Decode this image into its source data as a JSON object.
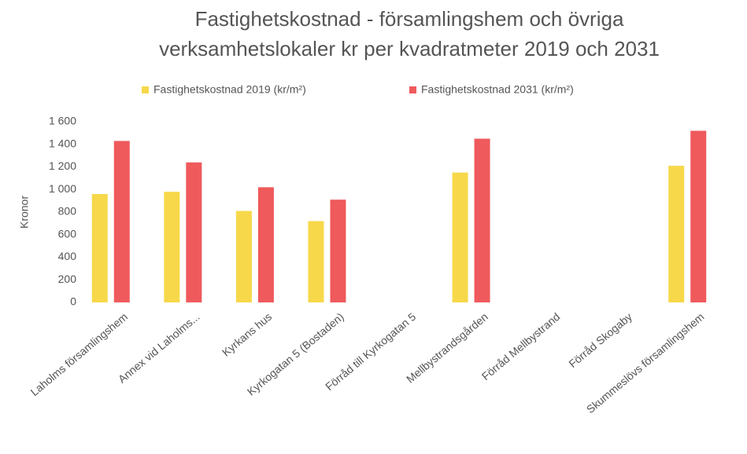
{
  "chart_data": {
    "type": "bar",
    "title": "Fastighetskostnad - församlingshem och övriga verksamhetslokaler kr per kvadratmeter 2019 och 2031",
    "y_label": "Kronor",
    "categories": [
      "Laholms församlingshem",
      "Annex vid Laholms...",
      "Kyrkans hus",
      "Kyrkogatan 5 (Bostaden)",
      "Förråd till Kyrkogatan 5",
      "Mellbystrandsgården",
      "Förråd Mellbystrand",
      "Förråd Skogaby",
      "Skummeslövs församlingshem"
    ],
    "series": [
      {
        "name": "Fastighetskostnad 2019 (kr/m²)",
        "color": "#f6d84a",
        "values": [
          960,
          980,
          810,
          720,
          null,
          1150,
          null,
          null,
          1210
        ]
      },
      {
        "name": "Fastighetskostnad 2031 (kr/m²)",
        "color": "#ef5a5c",
        "values": [
          1430,
          1240,
          1020,
          910,
          null,
          1450,
          null,
          null,
          1520
        ]
      }
    ],
    "ylim": [
      0,
      1600
    ],
    "yticks": [
      0,
      200,
      400,
      600,
      800,
      {
        "value": 1000,
        "label": "1 000"
      },
      {
        "value": 1200,
        "label": "1 200"
      },
      {
        "value": 1400,
        "label": "1 400"
      },
      {
        "value": 1600,
        "label": "1 600"
      }
    ],
    "legend": "top",
    "grid": false
  }
}
